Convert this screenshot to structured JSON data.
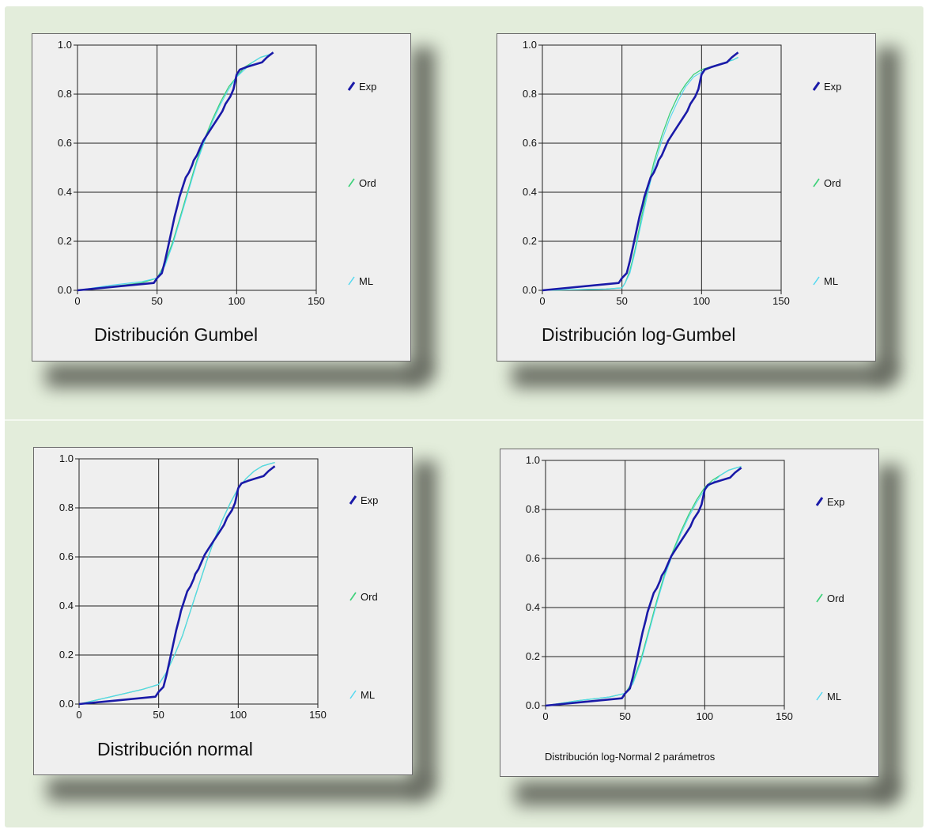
{
  "chart_data": [
    {
      "type": "line",
      "title": "Distribución Gumbel",
      "xlim": [
        0,
        150
      ],
      "ylim": [
        0,
        1
      ],
      "xticks": [
        "0",
        "50",
        "100",
        "150"
      ],
      "yticks": [
        "0.0",
        "0.2",
        "0.4",
        "0.6",
        "0.8",
        "1.0"
      ],
      "legend": "right",
      "grid": true,
      "series": [
        {
          "name": "Exp",
          "color": "#1a1aa8",
          "x": [
            0,
            48,
            50,
            53,
            55,
            57,
            59,
            61,
            63,
            64,
            66,
            68,
            70,
            72,
            73,
            75,
            77,
            79,
            82,
            85,
            88,
            91,
            93,
            96,
            98,
            100,
            102,
            106,
            111,
            116,
            119,
            121,
            123
          ],
          "y": [
            0,
            0.03,
            0.05,
            0.07,
            0.12,
            0.18,
            0.24,
            0.3,
            0.35,
            0.38,
            0.42,
            0.46,
            0.48,
            0.51,
            0.53,
            0.55,
            0.58,
            0.61,
            0.64,
            0.67,
            0.7,
            0.73,
            0.76,
            0.79,
            0.82,
            0.88,
            0.9,
            0.91,
            0.92,
            0.93,
            0.95,
            0.96,
            0.97
          ]
        },
        {
          "name": "Ord",
          "color": "#3ed17a",
          "x": [
            0,
            20,
            40,
            50,
            55,
            60,
            65,
            70,
            75,
            80,
            85,
            90,
            95,
            100,
            105,
            110,
            115,
            120,
            123
          ],
          "y": [
            0,
            0.015,
            0.03,
            0.05,
            0.11,
            0.2,
            0.31,
            0.42,
            0.53,
            0.62,
            0.7,
            0.77,
            0.83,
            0.87,
            0.91,
            0.93,
            0.95,
            0.96,
            0.97
          ]
        },
        {
          "name": "ML",
          "color": "#52d8f0",
          "x": [
            0,
            20,
            40,
            50,
            55,
            60,
            65,
            70,
            75,
            80,
            85,
            90,
            95,
            100,
            105,
            110,
            115,
            120,
            123
          ],
          "y": [
            0,
            0.02,
            0.035,
            0.05,
            0.1,
            0.19,
            0.3,
            0.41,
            0.52,
            0.61,
            0.69,
            0.76,
            0.82,
            0.87,
            0.9,
            0.93,
            0.95,
            0.96,
            0.97
          ]
        }
      ]
    },
    {
      "type": "line",
      "title": "Distribución log-Gumbel",
      "xlim": [
        0,
        150
      ],
      "ylim": [
        0,
        1
      ],
      "xticks": [
        "0",
        "50",
        "100",
        "150"
      ],
      "yticks": [
        "0.0",
        "0.2",
        "0.4",
        "0.6",
        "0.8",
        "1.0"
      ],
      "legend": "right",
      "grid": true,
      "series": [
        {
          "name": "Exp",
          "color": "#1a1aa8",
          "x": [
            0,
            48,
            50,
            53,
            55,
            57,
            59,
            61,
            63,
            64,
            66,
            68,
            70,
            72,
            73,
            75,
            77,
            79,
            82,
            85,
            88,
            91,
            93,
            96,
            98,
            100,
            102,
            106,
            111,
            116,
            119,
            121,
            123
          ],
          "y": [
            0,
            0.03,
            0.05,
            0.07,
            0.12,
            0.18,
            0.24,
            0.3,
            0.35,
            0.38,
            0.42,
            0.46,
            0.48,
            0.51,
            0.53,
            0.55,
            0.58,
            0.61,
            0.64,
            0.67,
            0.7,
            0.73,
            0.76,
            0.79,
            0.82,
            0.88,
            0.9,
            0.91,
            0.92,
            0.93,
            0.95,
            0.96,
            0.97
          ]
        },
        {
          "name": "Ord",
          "color": "#3ed17a",
          "x": [
            0,
            40,
            50,
            52,
            55,
            58,
            62,
            66,
            70,
            75,
            80,
            85,
            90,
            95,
            100,
            105,
            110,
            115,
            120,
            123
          ],
          "y": [
            0,
            0.005,
            0.01,
            0.03,
            0.08,
            0.16,
            0.29,
            0.41,
            0.52,
            0.63,
            0.72,
            0.79,
            0.84,
            0.88,
            0.9,
            0.91,
            0.92,
            0.93,
            0.94,
            0.95
          ]
        },
        {
          "name": "ML",
          "color": "#52d8f0",
          "x": [
            0,
            40,
            50,
            52,
            55,
            58,
            62,
            66,
            70,
            75,
            80,
            85,
            90,
            95,
            100,
            105,
            110,
            115,
            120,
            123
          ],
          "y": [
            0,
            0.005,
            0.01,
            0.03,
            0.07,
            0.15,
            0.27,
            0.39,
            0.5,
            0.61,
            0.7,
            0.77,
            0.83,
            0.87,
            0.89,
            0.91,
            0.92,
            0.93,
            0.94,
            0.95
          ]
        }
      ]
    },
    {
      "type": "line",
      "title": "Distribución normal",
      "xlim": [
        0,
        150
      ],
      "ylim": [
        0,
        1
      ],
      "xticks": [
        "0",
        "50",
        "100",
        "150"
      ],
      "yticks": [
        "0.0",
        "0.2",
        "0.4",
        "0.6",
        "0.8",
        "1.0"
      ],
      "legend": "right",
      "grid": true,
      "series": [
        {
          "name": "Exp",
          "color": "#1a1aa8",
          "x": [
            0,
            48,
            50,
            53,
            55,
            57,
            59,
            61,
            63,
            64,
            66,
            68,
            70,
            72,
            73,
            75,
            77,
            79,
            82,
            85,
            88,
            91,
            93,
            96,
            98,
            100,
            102,
            106,
            111,
            116,
            119,
            121,
            123
          ],
          "y": [
            0,
            0.03,
            0.05,
            0.07,
            0.12,
            0.18,
            0.24,
            0.3,
            0.35,
            0.38,
            0.42,
            0.46,
            0.48,
            0.51,
            0.53,
            0.55,
            0.58,
            0.61,
            0.64,
            0.67,
            0.7,
            0.73,
            0.76,
            0.79,
            0.82,
            0.88,
            0.9,
            0.91,
            0.92,
            0.93,
            0.95,
            0.96,
            0.97
          ]
        },
        {
          "name": "Ord",
          "color": "#3ed17a",
          "x": [
            0,
            20,
            40,
            50,
            55,
            60,
            65,
            70,
            75,
            80,
            85,
            90,
            95,
            100,
            105,
            110,
            115,
            120,
            123
          ],
          "y": [
            0,
            0.03,
            0.06,
            0.08,
            0.13,
            0.2,
            0.28,
            0.38,
            0.48,
            0.58,
            0.67,
            0.75,
            0.82,
            0.88,
            0.92,
            0.95,
            0.97,
            0.98,
            0.985
          ]
        },
        {
          "name": "ML",
          "color": "#52d8f0",
          "x": [
            0,
            20,
            40,
            50,
            55,
            60,
            65,
            70,
            75,
            80,
            85,
            90,
            95,
            100,
            105,
            110,
            115,
            120,
            123
          ],
          "y": [
            0,
            0.03,
            0.06,
            0.08,
            0.13,
            0.2,
            0.28,
            0.38,
            0.48,
            0.58,
            0.67,
            0.75,
            0.82,
            0.88,
            0.92,
            0.95,
            0.97,
            0.98,
            0.985
          ]
        }
      ]
    },
    {
      "type": "line",
      "title": "Distribución log-Normal 2 parámetros",
      "xlim": [
        0,
        150
      ],
      "ylim": [
        0,
        1
      ],
      "xticks": [
        "0",
        "50",
        "100",
        "150"
      ],
      "yticks": [
        "0.0",
        "0.2",
        "0.4",
        "0.6",
        "0.8",
        "1.0"
      ],
      "legend": "right",
      "grid": true,
      "series": [
        {
          "name": "Exp",
          "color": "#1a1aa8",
          "x": [
            0,
            48,
            50,
            53,
            55,
            57,
            59,
            61,
            63,
            64,
            66,
            68,
            70,
            72,
            73,
            75,
            77,
            79,
            82,
            85,
            88,
            91,
            93,
            96,
            98,
            100,
            102,
            106,
            111,
            116,
            119,
            121,
            123
          ],
          "y": [
            0,
            0.03,
            0.05,
            0.07,
            0.12,
            0.18,
            0.24,
            0.3,
            0.35,
            0.38,
            0.42,
            0.46,
            0.48,
            0.51,
            0.53,
            0.55,
            0.58,
            0.61,
            0.64,
            0.67,
            0.7,
            0.73,
            0.76,
            0.79,
            0.82,
            0.88,
            0.9,
            0.91,
            0.92,
            0.93,
            0.95,
            0.96,
            0.97
          ]
        },
        {
          "name": "Ord",
          "color": "#3ed17a",
          "x": [
            0,
            20,
            40,
            50,
            55,
            60,
            65,
            70,
            75,
            80,
            85,
            90,
            95,
            100,
            105,
            110,
            115,
            120,
            123
          ],
          "y": [
            0,
            0.02,
            0.035,
            0.05,
            0.1,
            0.19,
            0.31,
            0.43,
            0.54,
            0.63,
            0.71,
            0.78,
            0.84,
            0.89,
            0.92,
            0.94,
            0.96,
            0.97,
            0.975
          ]
        },
        {
          "name": "ML",
          "color": "#52d8f0",
          "x": [
            0,
            20,
            40,
            50,
            55,
            60,
            65,
            70,
            75,
            80,
            85,
            90,
            95,
            100,
            105,
            110,
            115,
            120,
            123
          ],
          "y": [
            0,
            0.02,
            0.035,
            0.05,
            0.09,
            0.18,
            0.3,
            0.42,
            0.53,
            0.62,
            0.7,
            0.77,
            0.83,
            0.88,
            0.91,
            0.94,
            0.96,
            0.97,
            0.975
          ]
        }
      ]
    }
  ]
}
